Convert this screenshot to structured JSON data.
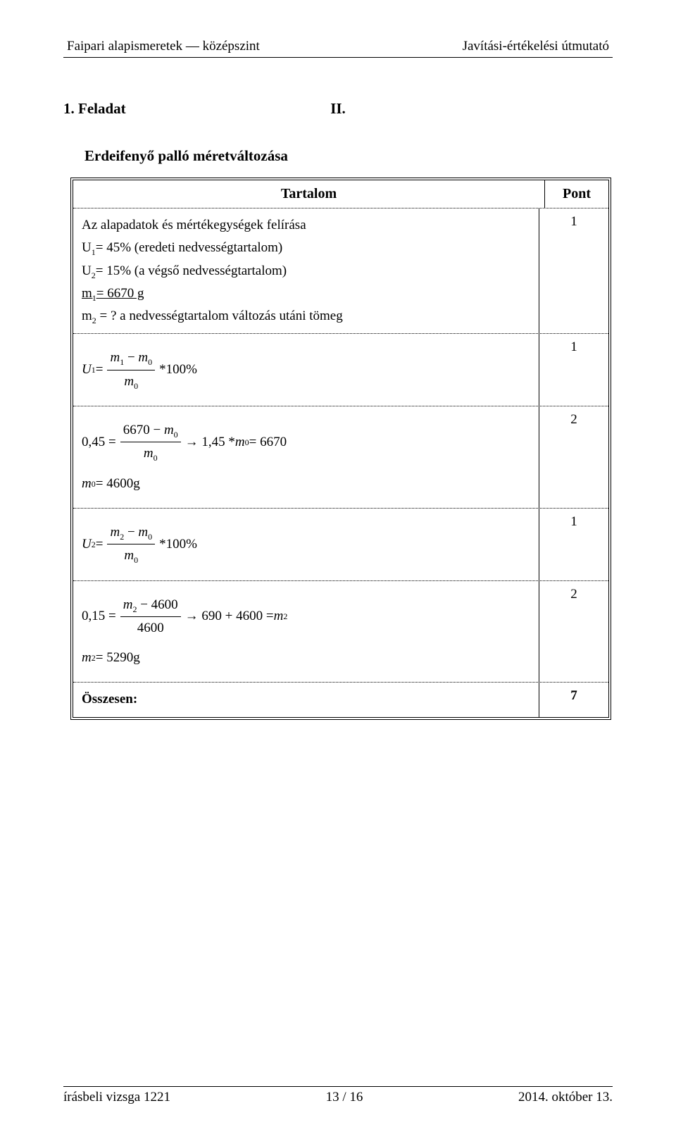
{
  "header": {
    "left": "Faipari alapismeretek — középszint",
    "right": "Javítási-értékelési útmutató"
  },
  "section": {
    "roman": "II.",
    "task": "1. Feladat",
    "subheading": "Erdeifenyő palló méretváltozása"
  },
  "table": {
    "col_content": "Tartalom",
    "col_points": "Pont",
    "rows": {
      "r1": {
        "l1": "Az alapadatok és mértékegységek felírása",
        "l2a": "U",
        "l2sub": "1",
        "l2b": "= 45% (eredeti nedvességtartalom)",
        "l3a": "U",
        "l3sub": "2",
        "l3b": "= 15% (a végső nedvességtartalom)",
        "l4a": "m",
        "l4sub": "1",
        "l4b": "= 6670 g",
        "l5a": "m",
        "l5sub": "2",
        "l5b": " = ? a nedvességtartalom változás utáni tömeg",
        "pts": "1"
      },
      "r2": {
        "U": "U",
        "Usub": "1",
        "eq": " = ",
        "num_a": "m",
        "num_as": "1",
        "num_mid": " − ",
        "num_b": "m",
        "num_bs": "0",
        "den_a": "m",
        "den_as": "0",
        "tail": " *100%",
        "pts": "1"
      },
      "r3": {
        "lhs": "0,45 = ",
        "num_a": "6670 − ",
        "num_b": "m",
        "num_bs": "0",
        "den_a": "m",
        "den_as": "0",
        "arrow": " → 1,45 * ",
        "mb": "m",
        "mbs": "0",
        "tail": " = 6670",
        "line2a": "m",
        "line2as": "0",
        "line2b": " = 4600g",
        "pts": "2"
      },
      "r4": {
        "U": "U",
        "Usub": "2",
        "eq": " = ",
        "num_a": "m",
        "num_as": "2",
        "num_mid": " − ",
        "num_b": "m",
        "num_bs": "0",
        "den_a": "m",
        "den_as": "0",
        "tail": " *100%",
        "pts": "1"
      },
      "r5": {
        "lhs": "0,15 = ",
        "num_a": "m",
        "num_as": "2",
        "num_b": " − 4600",
        "den": "4600",
        "arrow": " → 690 + 4600 = ",
        "mb": "m",
        "mbs": "2",
        "line2a": "m",
        "line2as": "2",
        "line2b": " = 5290g",
        "pts": "2"
      }
    },
    "total_label": "Összesen:",
    "total_value": "7"
  },
  "footer": {
    "left": "írásbeli vizsga 1221",
    "center": "13 / 16",
    "right": "2014. október 13."
  }
}
